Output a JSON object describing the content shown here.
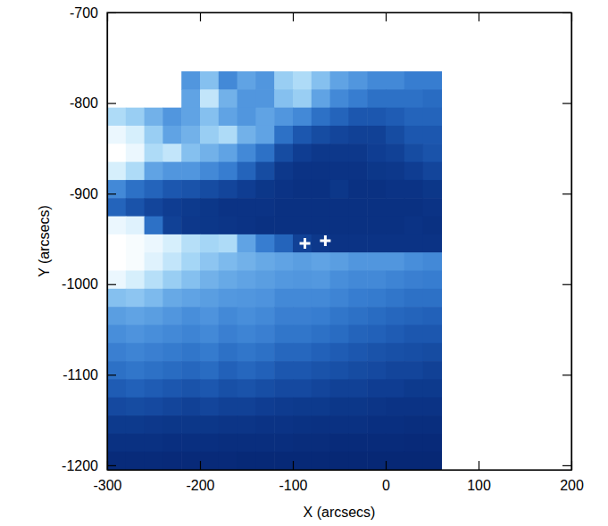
{
  "chart_data": {
    "type": "heatmap",
    "xlabel": "X (arcsecs)",
    "ylabel": "Y (arcsecs)",
    "xlim": [
      -300,
      200
    ],
    "ylim": [
      -1205,
      -700
    ],
    "xticks": [
      -300,
      -200,
      -100,
      0,
      100,
      200
    ],
    "yticks": [
      -1200,
      -1100,
      -1000,
      -900,
      -800,
      -700
    ],
    "zlim": [
      0,
      100
    ],
    "x_edges": [
      -300,
      -280,
      -260,
      -240,
      -220,
      -200,
      -180,
      -160,
      -140,
      -120,
      -100,
      -80,
      -60,
      -40,
      -20,
      0,
      20,
      40,
      60
    ],
    "y_edges": [
      -765,
      -785,
      -805,
      -825,
      -845,
      -865,
      -885,
      -905,
      -925,
      -945,
      -965,
      -985,
      -1005,
      -1025,
      -1045,
      -1065,
      -1085,
      -1105,
      -1125,
      -1145,
      -1165,
      -1185,
      -1205
    ],
    "values": [
      [
        null,
        null,
        null,
        null,
        55,
        70,
        50,
        60,
        55,
        75,
        80,
        70,
        60,
        55,
        50,
        50,
        45,
        45
      ],
      [
        null,
        null,
        null,
        null,
        60,
        85,
        65,
        55,
        55,
        70,
        75,
        60,
        50,
        45,
        40,
        40,
        40,
        38
      ],
      [
        80,
        75,
        65,
        55,
        60,
        70,
        60,
        55,
        60,
        55,
        50,
        40,
        35,
        30,
        30,
        32,
        35,
        35
      ],
      [
        95,
        90,
        75,
        60,
        65,
        75,
        80,
        65,
        60,
        40,
        30,
        25,
        22,
        20,
        20,
        25,
        30,
        30
      ],
      [
        100,
        95,
        80,
        85,
        70,
        65,
        60,
        50,
        40,
        25,
        18,
        15,
        15,
        15,
        18,
        20,
        25,
        28
      ],
      [
        90,
        80,
        60,
        55,
        55,
        50,
        45,
        35,
        25,
        15,
        12,
        12,
        12,
        12,
        14,
        15,
        18,
        22
      ],
      [
        50,
        40,
        35,
        30,
        28,
        25,
        22,
        18,
        14,
        12,
        10,
        10,
        14,
        10,
        10,
        12,
        12,
        14
      ],
      [
        35,
        28,
        22,
        18,
        16,
        14,
        12,
        12,
        12,
        10,
        10,
        10,
        10,
        10,
        10,
        10,
        10,
        12
      ],
      [
        95,
        92,
        40,
        20,
        15,
        14,
        13,
        12,
        10,
        10,
        10,
        10,
        10,
        10,
        10,
        10,
        12,
        10
      ],
      [
        100,
        98,
        95,
        90,
        82,
        78,
        80,
        60,
        45,
        35,
        20,
        15,
        12,
        12,
        12,
        12,
        12,
        12
      ],
      [
        100,
        98,
        92,
        85,
        78,
        72,
        68,
        65,
        62,
        60,
        58,
        60,
        58,
        55,
        55,
        55,
        52,
        50
      ],
      [
        95,
        90,
        82,
        75,
        70,
        65,
        62,
        60,
        58,
        56,
        55,
        56,
        52,
        50,
        50,
        48,
        46,
        45
      ],
      [
        70,
        72,
        68,
        62,
        60,
        58,
        56,
        55,
        54,
        50,
        50,
        50,
        48,
        45,
        44,
        42,
        40,
        40
      ],
      [
        58,
        60,
        58,
        55,
        52,
        54,
        50,
        52,
        50,
        46,
        46,
        45,
        42,
        40,
        38,
        36,
        35,
        34
      ],
      [
        52,
        54,
        52,
        50,
        48,
        50,
        46,
        48,
        46,
        42,
        42,
        40,
        38,
        35,
        34,
        32,
        30,
        30
      ],
      [
        46,
        48,
        46,
        44,
        42,
        44,
        40,
        42,
        40,
        36,
        36,
        34,
        32,
        30,
        28,
        27,
        26,
        25
      ],
      [
        40,
        42,
        40,
        38,
        36,
        38,
        34,
        36,
        34,
        30,
        30,
        28,
        27,
        25,
        24,
        22,
        22,
        20
      ],
      [
        32,
        34,
        32,
        30,
        28,
        30,
        27,
        28,
        26,
        24,
        24,
        22,
        20,
        20,
        18,
        18,
        16,
        16
      ],
      [
        24,
        25,
        24,
        22,
        20,
        22,
        20,
        20,
        18,
        17,
        16,
        16,
        14,
        14,
        13,
        12,
        12,
        12
      ],
      [
        16,
        16,
        15,
        14,
        14,
        14,
        13,
        13,
        12,
        12,
        11,
        10,
        10,
        10,
        9,
        9,
        8,
        8
      ],
      [
        10,
        10,
        10,
        9,
        9,
        9,
        8,
        8,
        8,
        8,
        7,
        7,
        6,
        6,
        6,
        6,
        5,
        5
      ],
      [
        6,
        6,
        6,
        5,
        5,
        5,
        5,
        4,
        4,
        4,
        4,
        4,
        3,
        3,
        3,
        3,
        3,
        3
      ]
    ],
    "series": [
      {
        "type": "scatter",
        "marker": "plus",
        "color": "#ffffff",
        "x": [
          -87,
          -65
        ],
        "y": [
          -955,
          -952
        ]
      }
    ]
  }
}
